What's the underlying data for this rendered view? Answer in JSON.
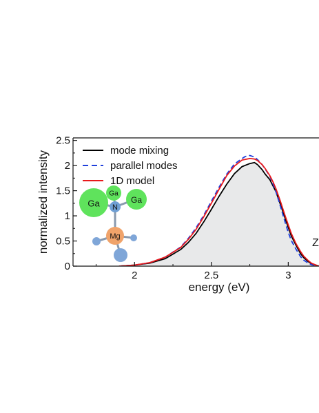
{
  "chart_data": {
    "type": "line",
    "title": "",
    "xlabel": "energy (eV)",
    "ylabel": "normalized intensity",
    "xlim": [
      1.6,
      3.2
    ],
    "ylim": [
      0,
      2.55
    ],
    "x_ticks": [
      2,
      2.5,
      3
    ],
    "x_tick_labels": [
      "2",
      "2.5",
      "3"
    ],
    "y_ticks": [
      0,
      0.5,
      1,
      1.5,
      2,
      2.5
    ],
    "y_tick_labels": [
      "0",
      "0.5",
      "1",
      "1.5",
      "2",
      "2.5"
    ],
    "grid": false,
    "legend_position": "top-left",
    "series": [
      {
        "name": "mode mixing",
        "color": "#000000",
        "style": "solid",
        "filled": true,
        "fill_color": "#e8e9ea",
        "x": [
          1.9,
          2.0,
          2.1,
          2.2,
          2.3,
          2.35,
          2.4,
          2.45,
          2.5,
          2.55,
          2.6,
          2.65,
          2.7,
          2.75,
          2.78,
          2.8,
          2.83,
          2.85,
          2.88,
          2.9,
          2.92,
          2.95,
          2.98,
          3.0,
          3.02,
          3.05,
          3.08,
          3.1,
          3.13,
          3.15,
          3.18,
          3.2
        ],
        "y": [
          0.0,
          0.02,
          0.06,
          0.15,
          0.33,
          0.47,
          0.65,
          0.88,
          1.13,
          1.39,
          1.63,
          1.84,
          1.98,
          2.04,
          2.06,
          2.02,
          1.92,
          1.83,
          1.72,
          1.6,
          1.48,
          1.22,
          0.95,
          0.77,
          0.6,
          0.42,
          0.25,
          0.17,
          0.09,
          0.05,
          0.02,
          0.0
        ]
      },
      {
        "name": "parallel modes",
        "color": "#1f3fdc",
        "style": "dashed",
        "x": [
          1.9,
          2.0,
          2.1,
          2.2,
          2.3,
          2.35,
          2.4,
          2.45,
          2.5,
          2.55,
          2.6,
          2.65,
          2.7,
          2.72,
          2.75,
          2.78,
          2.8,
          2.83,
          2.85,
          2.88,
          2.9,
          2.92,
          2.95,
          2.98,
          3.0,
          3.02,
          3.05,
          3.08,
          3.1,
          3.13,
          3.15,
          3.18,
          3.2
        ],
        "y": [
          0.0,
          0.02,
          0.07,
          0.18,
          0.38,
          0.55,
          0.76,
          1.01,
          1.29,
          1.57,
          1.83,
          2.03,
          2.14,
          2.18,
          2.2,
          2.17,
          2.12,
          2.02,
          1.93,
          1.79,
          1.64,
          1.48,
          1.18,
          0.87,
          0.67,
          0.51,
          0.34,
          0.19,
          0.12,
          0.06,
          0.03,
          0.01,
          0.0
        ]
      },
      {
        "name": "1D model",
        "color": "#e8191b",
        "style": "solid",
        "x": [
          1.9,
          2.0,
          2.1,
          2.2,
          2.3,
          2.35,
          2.4,
          2.45,
          2.5,
          2.55,
          2.6,
          2.65,
          2.7,
          2.75,
          2.78,
          2.8,
          2.83,
          2.85,
          2.88,
          2.9,
          2.92,
          2.95,
          2.98,
          3.0,
          3.02,
          3.05,
          3.08,
          3.1,
          3.13,
          3.15,
          3.18,
          3.2
        ],
        "y": [
          0.0,
          0.02,
          0.07,
          0.18,
          0.37,
          0.53,
          0.73,
          0.98,
          1.25,
          1.53,
          1.8,
          1.99,
          2.11,
          2.14,
          2.13,
          2.1,
          2.02,
          1.94,
          1.8,
          1.68,
          1.54,
          1.28,
          1.0,
          0.82,
          0.65,
          0.45,
          0.29,
          0.2,
          0.11,
          0.06,
          0.02,
          0.0
        ]
      }
    ]
  },
  "inset": {
    "atoms": [
      {
        "label": "Ga",
        "color": "#5fe35c"
      },
      {
        "label": "Ga",
        "color": "#5fe35c"
      },
      {
        "label": "Ga",
        "color": "#5fe35c"
      },
      {
        "label": "N",
        "color": "#6f9fd4"
      },
      {
        "label": "Mg",
        "color": "#f0a36a"
      }
    ],
    "small_atom_color": "#7fa6d8"
  },
  "edge_label": "Z"
}
